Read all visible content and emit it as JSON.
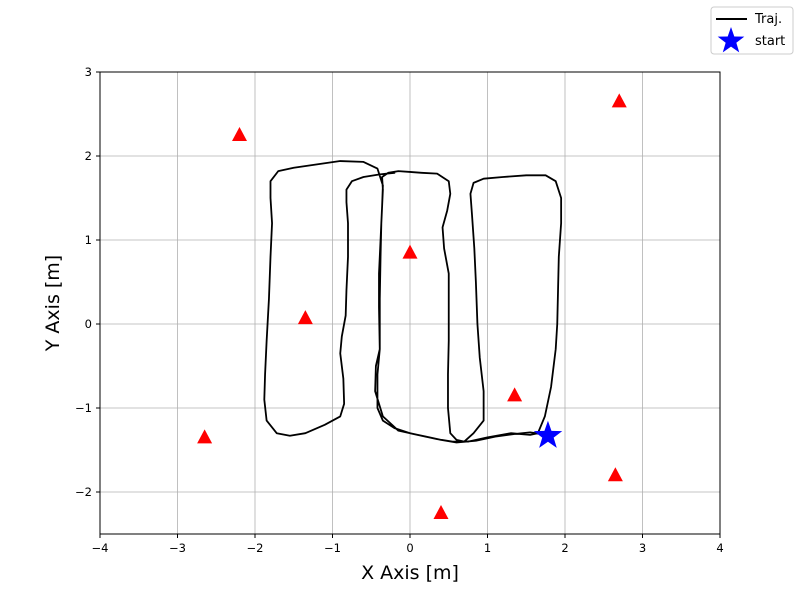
{
  "chart_data": {
    "type": "line",
    "title": "",
    "xlabel": "X Axis [m]",
    "ylabel": "Y Axis [m]",
    "xlim": [
      -4,
      4
    ],
    "ylim": [
      -2.5,
      3
    ],
    "xticks": [
      -4,
      -3,
      -2,
      -1,
      0,
      1,
      2,
      3,
      4
    ],
    "yticks": [
      -2,
      -1,
      0,
      1,
      2,
      3
    ],
    "xtick_labels": [
      "−4",
      "−3",
      "−2",
      "−1",
      "0",
      "1",
      "2",
      "3",
      "4"
    ],
    "ytick_labels": [
      "−2",
      "−1",
      "0",
      "1",
      "2",
      "3"
    ],
    "grid": true,
    "legend_position": "top-right, outside plot",
    "legend": [
      {
        "label": "Traj.",
        "marker": "line",
        "color": "#000000"
      },
      {
        "label": "start",
        "marker": "star",
        "color": "#0000ff"
      }
    ],
    "series": [
      {
        "name": "Traj.",
        "type": "line",
        "color": "#000000",
        "points": [
          [
            1.78,
            -1.33
          ],
          [
            1.7,
            -1.31
          ],
          [
            1.55,
            -1.29
          ],
          [
            1.35,
            -1.31
          ],
          [
            1.1,
            -1.34
          ],
          [
            0.85,
            -1.39
          ],
          [
            0.6,
            -1.41
          ],
          [
            0.4,
            -1.38
          ],
          [
            0.2,
            -1.34
          ],
          [
            0.0,
            -1.3
          ],
          [
            -0.2,
            -1.24
          ],
          [
            -0.35,
            -1.15
          ],
          [
            -0.42,
            -1.0
          ],
          [
            -0.42,
            -0.6
          ],
          [
            -0.39,
            -0.3
          ],
          [
            -0.39,
            0.3
          ],
          [
            -0.38,
            0.8
          ],
          [
            -0.37,
            1.2
          ],
          [
            -0.35,
            1.6
          ],
          [
            -0.36,
            1.75
          ],
          [
            -0.28,
            1.8
          ],
          [
            -0.15,
            1.82
          ],
          [
            0.0,
            1.81
          ],
          [
            0.15,
            1.8
          ],
          [
            0.35,
            1.79
          ],
          [
            0.5,
            1.7
          ],
          [
            0.52,
            1.55
          ],
          [
            0.48,
            1.35
          ],
          [
            0.42,
            1.15
          ],
          [
            0.44,
            0.9
          ],
          [
            0.5,
            0.6
          ],
          [
            0.5,
            0.2
          ],
          [
            0.5,
            -0.2
          ],
          [
            0.49,
            -0.6
          ],
          [
            0.49,
            -1.0
          ],
          [
            0.52,
            -1.3
          ],
          [
            0.6,
            -1.38
          ],
          [
            0.7,
            -1.4
          ],
          [
            0.82,
            -1.3
          ],
          [
            0.95,
            -1.15
          ],
          [
            0.95,
            -0.8
          ],
          [
            0.9,
            -0.4
          ],
          [
            0.87,
            0.0
          ],
          [
            0.85,
            0.5
          ],
          [
            0.83,
            0.9
          ],
          [
            0.8,
            1.3
          ],
          [
            0.78,
            1.55
          ],
          [
            0.82,
            1.68
          ],
          [
            0.95,
            1.73
          ],
          [
            1.2,
            1.75
          ],
          [
            1.5,
            1.77
          ],
          [
            1.75,
            1.77
          ],
          [
            1.88,
            1.7
          ],
          [
            1.95,
            1.5
          ],
          [
            1.95,
            1.2
          ],
          [
            1.92,
            0.8
          ],
          [
            1.91,
            0.4
          ],
          [
            1.9,
            0.0
          ],
          [
            1.88,
            -0.3
          ],
          [
            1.82,
            -0.75
          ],
          [
            1.74,
            -1.1
          ],
          [
            1.65,
            -1.3
          ],
          [
            1.55,
            -1.32
          ],
          [
            1.3,
            -1.3
          ],
          [
            1.0,
            -1.35
          ],
          [
            0.75,
            -1.4
          ],
          [
            0.55,
            -1.4
          ],
          [
            0.35,
            -1.37
          ],
          [
            0.15,
            -1.33
          ],
          [
            -0.15,
            -1.27
          ],
          [
            -0.35,
            -1.1
          ],
          [
            -0.45,
            -0.8
          ],
          [
            -0.44,
            -0.5
          ],
          [
            -0.39,
            -0.3
          ],
          [
            -0.4,
            0.2
          ],
          [
            -0.4,
            0.6
          ],
          [
            -0.38,
            1.0
          ],
          [
            -0.36,
            1.4
          ],
          [
            -0.35,
            1.65
          ],
          [
            -0.42,
            1.85
          ],
          [
            -0.6,
            1.93
          ],
          [
            -0.9,
            1.94
          ],
          [
            -1.2,
            1.9
          ],
          [
            -1.5,
            1.86
          ],
          [
            -1.7,
            1.82
          ],
          [
            -1.8,
            1.7
          ],
          [
            -1.8,
            1.5
          ],
          [
            -1.78,
            1.2
          ],
          [
            -1.8,
            0.8
          ],
          [
            -1.82,
            0.3
          ],
          [
            -1.85,
            -0.2
          ],
          [
            -1.87,
            -0.6
          ],
          [
            -1.88,
            -0.9
          ],
          [
            -1.85,
            -1.15
          ],
          [
            -1.72,
            -1.3
          ],
          [
            -1.55,
            -1.33
          ],
          [
            -1.35,
            -1.3
          ],
          [
            -1.1,
            -1.2
          ],
          [
            -0.9,
            -1.1
          ],
          [
            -0.85,
            -0.95
          ],
          [
            -0.86,
            -0.65
          ],
          [
            -0.9,
            -0.35
          ],
          [
            -0.88,
            -0.15
          ],
          [
            -0.83,
            0.1
          ],
          [
            -0.82,
            0.4
          ],
          [
            -0.8,
            0.8
          ],
          [
            -0.8,
            1.2
          ],
          [
            -0.82,
            1.45
          ],
          [
            -0.82,
            1.6
          ],
          [
            -0.75,
            1.7
          ],
          [
            -0.6,
            1.75
          ],
          [
            -0.4,
            1.78
          ],
          [
            -0.2,
            1.8
          ]
        ]
      },
      {
        "name": "start",
        "type": "scatter",
        "marker": "star",
        "color": "#0000ff",
        "points": [
          [
            1.78,
            -1.33
          ]
        ]
      },
      {
        "name": "",
        "type": "scatter",
        "marker": "triangle",
        "color": "#ff0000",
        "points": [
          [
            -2.2,
            2.25
          ],
          [
            2.7,
            2.65
          ],
          [
            0.0,
            0.85
          ],
          [
            -1.35,
            0.07
          ],
          [
            -2.65,
            -1.35
          ],
          [
            1.35,
            -0.85
          ],
          [
            2.65,
            -1.8
          ],
          [
            0.4,
            -2.25
          ]
        ]
      }
    ]
  }
}
